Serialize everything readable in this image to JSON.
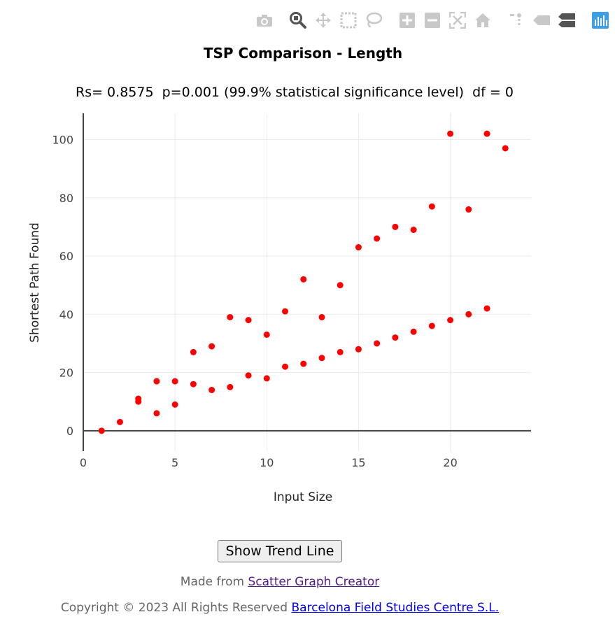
{
  "toolbar": {
    "icons": [
      "camera-icon",
      "zoom-icon",
      "pan-icon",
      "box-select-icon",
      "lasso-select-icon",
      "zoom-in-icon",
      "zoom-out-icon",
      "autoscale-icon",
      "reset-axes-icon",
      "spike-lines-icon",
      "hover-closest-icon",
      "hover-compare-icon",
      "plotly-logo-icon"
    ]
  },
  "chart_title": "TSP Comparison - Length",
  "chart_subtitle": "Rs= 0.8575  p=0.001 (99.9% statistical significance level)  df = 0",
  "chart_data": {
    "type": "scatter",
    "xlabel": "Input Size",
    "ylabel": "Shortest Path Found",
    "xlim": [
      0,
      24.4
    ],
    "ylim": [
      -7,
      109
    ],
    "x_ticks": [
      0,
      5,
      10,
      15,
      20
    ],
    "y_ticks": [
      0,
      20,
      40,
      60,
      80,
      100
    ],
    "grid": true,
    "marker_color": "#ff0000",
    "points": [
      [
        1,
        0
      ],
      [
        2,
        3
      ],
      [
        3,
        10
      ],
      [
        3,
        11
      ],
      [
        4,
        6
      ],
      [
        4,
        17
      ],
      [
        5,
        9
      ],
      [
        5,
        17
      ],
      [
        6,
        16
      ],
      [
        6,
        27
      ],
      [
        7,
        14
      ],
      [
        7,
        29
      ],
      [
        8,
        15
      ],
      [
        8,
        39
      ],
      [
        9,
        19
      ],
      [
        9,
        38
      ],
      [
        10,
        18
      ],
      [
        10,
        33
      ],
      [
        11,
        22
      ],
      [
        11,
        41
      ],
      [
        12,
        23
      ],
      [
        12,
        52
      ],
      [
        13,
        25
      ],
      [
        13,
        39
      ],
      [
        14,
        27
      ],
      [
        14,
        50
      ],
      [
        15,
        28
      ],
      [
        15,
        63
      ],
      [
        16,
        30
      ],
      [
        16,
        66
      ],
      [
        17,
        32
      ],
      [
        17,
        70
      ],
      [
        18,
        34
      ],
      [
        18,
        69
      ],
      [
        19,
        36
      ],
      [
        19,
        77
      ],
      [
        20,
        38
      ],
      [
        20,
        102
      ],
      [
        21,
        40
      ],
      [
        21,
        76
      ],
      [
        22,
        42
      ],
      [
        22,
        102
      ],
      [
        23,
        97
      ]
    ]
  },
  "trend_button_label": "Show Trend Line",
  "footer": {
    "made_prefix": "Made from ",
    "made_link": "Scatter Graph Creator",
    "copyright_prefix": "Copyright © 2023 All Rights Reserved ",
    "copyright_link": "Barcelona Field Studies Centre S.L."
  }
}
